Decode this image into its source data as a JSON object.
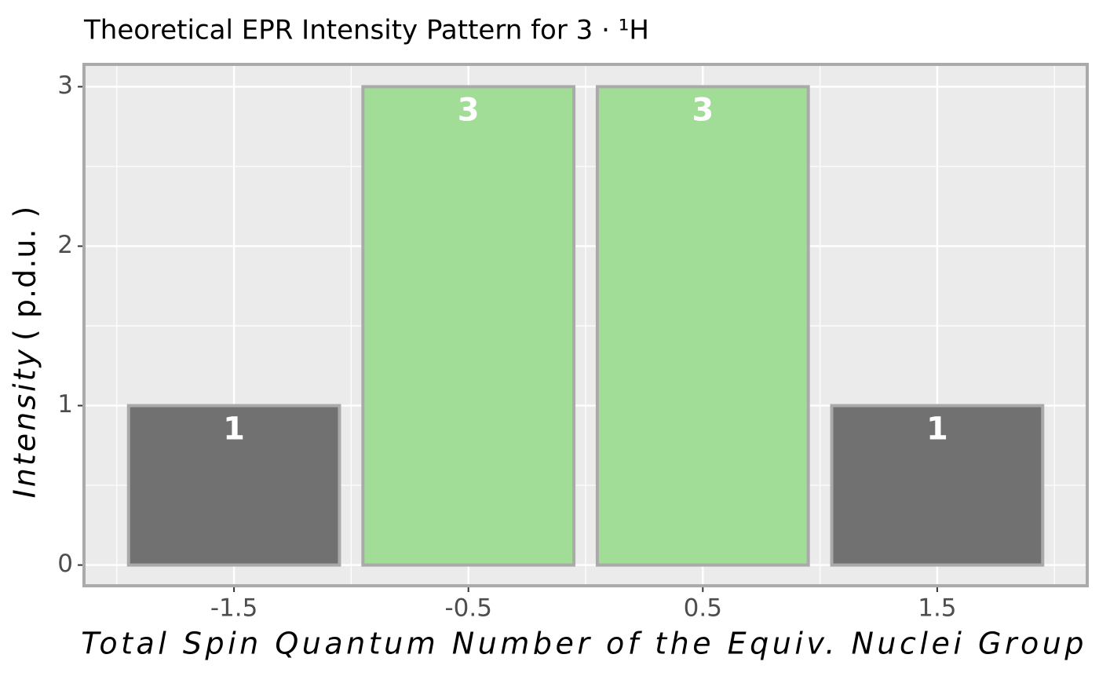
{
  "chart_data": {
    "type": "bar",
    "title": "Theoretical EPR Intensity Pattern for  3 · ¹H",
    "xlabel": "Total Spin Quantum Number of the Equiv. Nuclei Group",
    "ylabel": "Intensity",
    "ylabel_unit": "( p.d.u. )",
    "x": [
      -1.5,
      -0.5,
      0.5,
      1.5
    ],
    "values": [
      1,
      3,
      3,
      1
    ],
    "colors": [
      "#6e6e6e",
      "#a0dc96",
      "#a0dc96",
      "#6e6e6e"
    ],
    "edge_color": "#aaaaaa",
    "xlim": [
      -2.14,
      2.14
    ],
    "ylim": [
      -0.13,
      3.14
    ],
    "xticks": [
      -1.5,
      -0.5,
      0.5,
      1.5
    ],
    "yticks": [
      0,
      1,
      2,
      3
    ],
    "x_minor_grid": [
      -2,
      -1,
      0,
      1,
      2
    ],
    "y_minor_grid": [
      0.5,
      1.5,
      2.5
    ],
    "grid": true
  }
}
